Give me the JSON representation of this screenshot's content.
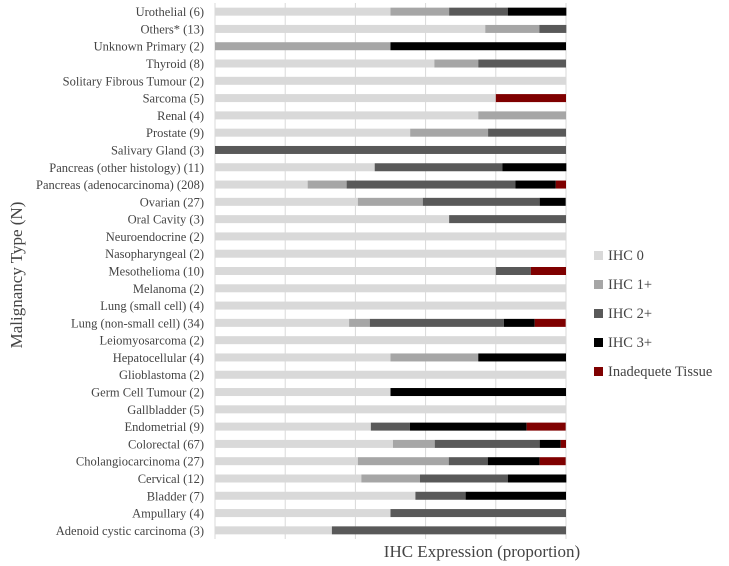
{
  "chart_data": {
    "type": "bar",
    "orientation": "horizontal",
    "stacked": true,
    "xlabel": "IHC Expression (proportion)",
    "ylabel": "Malignancy Type (N)",
    "xlim": [
      0,
      1
    ],
    "grid": true,
    "legend_position": "right",
    "categories": [
      "Urothelial (6)",
      "Others* (13)",
      "Unknown Primary (2)",
      "Thyroid (8)",
      "Solitary Fibrous Tumour (2)",
      "Sarcoma (5)",
      "Renal (4)",
      "Prostate (9)",
      "Salivary Gland (3)",
      "Pancreas (other histology) (11)",
      "Pancreas (adenocarcinoma) (208)",
      "Ovarian (27)",
      "Oral Cavity (3)",
      "Neuroendocrine (2)",
      "Nasopharyngeal (2)",
      "Mesothelioma (10)",
      "Melanoma (2)",
      "Lung (small cell) (4)",
      "Lung (non-small cell) (34)",
      "Leiomyosarcoma (2)",
      "Hepatocellular (4)",
      "Glioblastoma (2)",
      "Germ Cell Tumour (2)",
      "Gallbladder (5)",
      "Endometrial (9)",
      "Colorectal (67)",
      "Cholangiocarcinoma (27)",
      "Cervical (12)",
      "Bladder (7)",
      "Ampullary (4)",
      "Adenoid cystic carcinoma (3)"
    ],
    "series": [
      {
        "name": "IHC 0",
        "color": "#d9d9d9",
        "values": [
          0.5,
          0.77,
          0.0,
          0.625,
          1.0,
          0.8,
          0.75,
          0.556,
          0.0,
          0.455,
          0.264,
          0.407,
          0.667,
          1.0,
          1.0,
          0.8,
          1.0,
          1.0,
          0.382,
          1.0,
          0.5,
          1.0,
          0.5,
          1.0,
          0.444,
          0.507,
          0.407,
          0.417,
          0.571,
          0.5,
          0.333
        ]
      },
      {
        "name": "IHC 1+",
        "color": "#a6a6a6",
        "values": [
          0.167,
          0.154,
          0.5,
          0.125,
          0.0,
          0.0,
          0.25,
          0.222,
          0.0,
          0.0,
          0.111,
          0.185,
          0.0,
          0.0,
          0.0,
          0.0,
          0.0,
          0.0,
          0.059,
          0.0,
          0.25,
          0.0,
          0.0,
          0.0,
          0.0,
          0.119,
          0.259,
          0.167,
          0.0,
          0.0,
          0.0
        ]
      },
      {
        "name": "IHC 2+",
        "color": "#595959",
        "values": [
          0.167,
          0.077,
          0.0,
          0.25,
          0.0,
          0.0,
          0.0,
          0.222,
          1.0,
          0.364,
          0.481,
          0.333,
          0.333,
          0.0,
          0.0,
          0.1,
          0.0,
          0.0,
          0.382,
          0.0,
          0.0,
          0.0,
          0.0,
          0.0,
          0.111,
          0.299,
          0.111,
          0.25,
          0.143,
          0.5,
          0.667
        ]
      },
      {
        "name": "IHC 3+",
        "color": "#000000",
        "values": [
          0.167,
          0.0,
          0.5,
          0.0,
          0.0,
          0.0,
          0.0,
          0.0,
          0.0,
          0.182,
          0.115,
          0.074,
          0.0,
          0.0,
          0.0,
          0.0,
          0.0,
          0.0,
          0.088,
          0.0,
          0.25,
          0.0,
          0.5,
          0.0,
          0.333,
          0.06,
          0.148,
          0.167,
          0.286,
          0.0,
          0.0
        ]
      },
      {
        "name": "Inadequete Tissue",
        "color": "#7f0000",
        "values": [
          0.0,
          0.0,
          0.0,
          0.0,
          0.0,
          0.2,
          0.0,
          0.0,
          0.0,
          0.0,
          0.029,
          0.0,
          0.0,
          0.0,
          0.0,
          0.1,
          0.0,
          0.0,
          0.088,
          0.0,
          0.0,
          0.0,
          0.0,
          0.0,
          0.111,
          0.015,
          0.074,
          0.0,
          0.0,
          0.0,
          0.0
        ]
      }
    ]
  }
}
